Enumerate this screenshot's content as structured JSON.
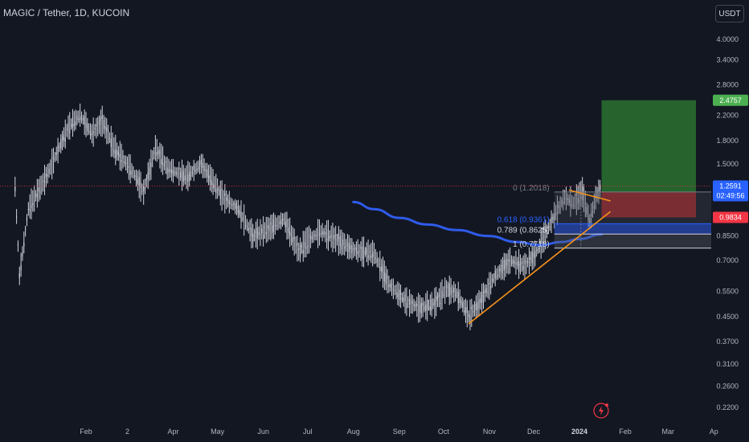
{
  "header": {
    "title": "MAGIC / Tether, 1D, KUCOIN",
    "currency_button": "USDT"
  },
  "colors": {
    "background": "#131722",
    "candle": "#d1d4dc",
    "ma_line": "#2f5bea",
    "trendline": "#f7931a",
    "target_zone": "#2e7d32",
    "stop_zone": "#c62828",
    "price_tag": "#2962ff",
    "target_tag": "#4caf50",
    "stop_tag": "#f23645"
  },
  "icons": {
    "lightning": "lightning-icon"
  },
  "chart_data": {
    "type": "candlestick",
    "pair": "MAGIC / Tether",
    "timeframe": "1D",
    "exchange": "KUCOIN",
    "y_scale": "log",
    "ylim": [
      0.2,
      4.6
    ],
    "y_ticks": [
      {
        "value": 4.0,
        "label": "4.0000"
      },
      {
        "value": 3.4,
        "label": "3.4000"
      },
      {
        "value": 2.8,
        "label": "2.8000"
      },
      {
        "value": 2.2,
        "label": "2.2000"
      },
      {
        "value": 1.8,
        "label": "1.8000"
      },
      {
        "value": 1.5,
        "label": "1.5000"
      },
      {
        "value": 0.85,
        "label": "0.8500"
      },
      {
        "value": 0.7,
        "label": "0.7000"
      },
      {
        "value": 0.55,
        "label": "0.5500"
      },
      {
        "value": 0.45,
        "label": "0.4500"
      },
      {
        "value": 0.37,
        "label": "0.3700"
      },
      {
        "value": 0.31,
        "label": "0.3100"
      },
      {
        "value": 0.26,
        "label": "0.2600"
      },
      {
        "value": 0.22,
        "label": "0.2200"
      }
    ],
    "x_range": [
      "2022-12-15",
      "2024-04-05"
    ],
    "x_ticks": [
      {
        "date": "2023-02-01",
        "label": "Feb"
      },
      {
        "date": "2023-03-01",
        "label": "2"
      },
      {
        "date": "2023-04-01",
        "label": "Apr"
      },
      {
        "date": "2023-05-01",
        "label": "May"
      },
      {
        "date": "2023-06-01",
        "label": "Jun"
      },
      {
        "date": "2023-07-01",
        "label": "Jul"
      },
      {
        "date": "2023-08-01",
        "label": "Aug"
      },
      {
        "date": "2023-09-01",
        "label": "Sep"
      },
      {
        "date": "2023-10-01",
        "label": "Oct"
      },
      {
        "date": "2023-11-01",
        "label": "Nov"
      },
      {
        "date": "2023-12-01",
        "label": "Dec"
      },
      {
        "date": "2024-01-01",
        "label": "2024",
        "bold": true
      },
      {
        "date": "2024-02-01",
        "label": "Feb"
      },
      {
        "date": "2024-03-01",
        "label": "Mar"
      },
      {
        "date": "2024-04-01",
        "label": "Ap"
      }
    ],
    "price_path": [
      [
        "2022-12-15",
        1.25
      ],
      [
        "2022-12-18",
        0.62
      ],
      [
        "2022-12-24",
        1.05
      ],
      [
        "2023-01-05",
        1.35
      ],
      [
        "2023-01-20",
        2.0
      ],
      [
        "2023-01-28",
        2.2
      ],
      [
        "2023-02-05",
        1.9
      ],
      [
        "2023-02-12",
        2.1
      ],
      [
        "2023-02-20",
        1.7
      ],
      [
        "2023-03-05",
        1.4
      ],
      [
        "2023-03-12",
        1.2
      ],
      [
        "2023-03-20",
        1.7
      ],
      [
        "2023-03-28",
        1.45
      ],
      [
        "2023-04-10",
        1.35
      ],
      [
        "2023-04-20",
        1.5
      ],
      [
        "2023-04-28",
        1.3
      ],
      [
        "2023-05-05",
        1.15
      ],
      [
        "2023-05-15",
        1.05
      ],
      [
        "2023-05-25",
        0.85
      ],
      [
        "2023-06-05",
        0.9
      ],
      [
        "2023-06-15",
        0.97
      ],
      [
        "2023-06-25",
        0.75
      ],
      [
        "2023-07-01",
        0.82
      ],
      [
        "2023-07-10",
        0.88
      ],
      [
        "2023-07-20",
        0.83
      ],
      [
        "2023-08-01",
        0.76
      ],
      [
        "2023-08-15",
        0.74
      ],
      [
        "2023-08-25",
        0.58
      ],
      [
        "2023-09-05",
        0.51
      ],
      [
        "2023-09-15",
        0.48
      ],
      [
        "2023-09-25",
        0.5
      ],
      [
        "2023-10-03",
        0.56
      ],
      [
        "2023-10-10",
        0.54
      ],
      [
        "2023-10-18",
        0.45
      ],
      [
        "2023-10-25",
        0.5
      ],
      [
        "2023-11-05",
        0.62
      ],
      [
        "2023-11-15",
        0.7
      ],
      [
        "2023-11-25",
        0.67
      ],
      [
        "2023-12-03",
        0.75
      ],
      [
        "2023-12-10",
        0.88
      ],
      [
        "2023-12-15",
        1.0
      ],
      [
        "2023-12-22",
        1.15
      ],
      [
        "2023-12-28",
        1.1
      ],
      [
        "2024-01-03",
        1.2
      ],
      [
        "2024-01-08",
        0.95
      ],
      [
        "2024-01-12",
        1.15
      ],
      [
        "2024-01-16",
        1.26
      ]
    ],
    "moving_average": [
      [
        "2023-08-01",
        1.11
      ],
      [
        "2023-08-15",
        1.05
      ],
      [
        "2023-09-01",
        0.98
      ],
      [
        "2023-09-20",
        0.93
      ],
      [
        "2023-10-10",
        0.89
      ],
      [
        "2023-10-31",
        0.85
      ],
      [
        "2023-11-20",
        0.81
      ],
      [
        "2023-12-05",
        0.79
      ],
      [
        "2023-12-20",
        0.81
      ],
      [
        "2024-01-01",
        0.83
      ],
      [
        "2024-01-16",
        0.86
      ]
    ],
    "trendlines": [
      {
        "from": [
          "2023-10-18",
          0.425
        ],
        "to": [
          "2024-01-22",
          1.03
        ]
      },
      {
        "from": [
          "2023-12-25",
          1.22
        ],
        "to": [
          "2024-01-22",
          1.12
        ]
      }
    ],
    "fib_levels": [
      {
        "ratio": "0",
        "price": 1.2018,
        "label": "0 (1.2018)"
      },
      {
        "ratio": "0.618",
        "price": 0.9361,
        "label": "0.618 (0.9361)"
      },
      {
        "ratio": "0.789",
        "price": 0.8625,
        "label": "0.789 (0.8625)"
      },
      {
        "ratio": "1",
        "price": 0.7718,
        "label": "1 (0.7718)"
      }
    ],
    "position": {
      "entry": 1.2018,
      "target": 2.4757,
      "stop": 0.9834,
      "start": "2024-01-16",
      "end": "2024-04-05"
    },
    "last_price": 1.2591,
    "countdown": "02:49:56",
    "price_tags": {
      "target": "2.4757",
      "last": "1.2591",
      "stop": "0.9834"
    }
  }
}
